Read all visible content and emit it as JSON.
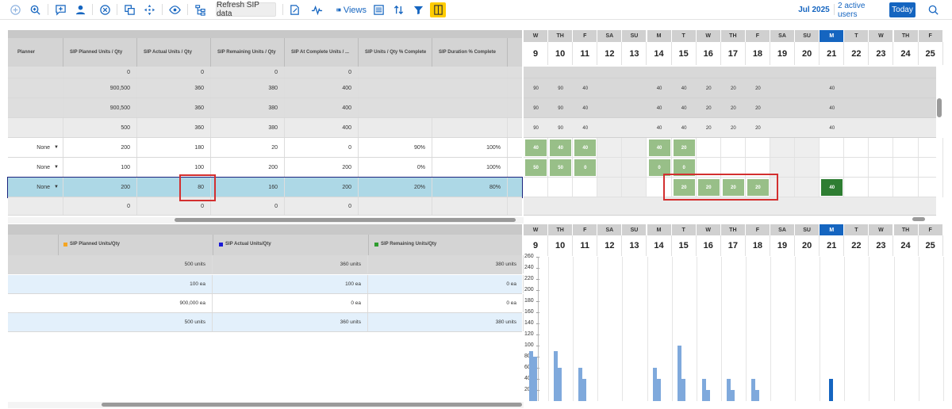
{
  "toolbar": {
    "refresh_label": "Refresh SIP data",
    "views_label": "Views",
    "month_label": "Jul 2025",
    "users_label": "2 active users",
    "today_label": "Today"
  },
  "planning_grid": {
    "columns": [
      "Planner",
      "SIP Planned Units / Qty",
      "SIP Actual Units / Qty",
      "SIP Remaining Units / Qty",
      "SIP At Complete Units / ...",
      "SIP Units / Qty % Complete",
      "SIP Duration % Complete"
    ],
    "rows": [
      {
        "planner": "",
        "planned": "0",
        "actual": "0",
        "remaining": "0",
        "at_complete": "0",
        "units_pct": "",
        "dur_pct": ""
      },
      {
        "planner": "",
        "planned": "900,500",
        "actual": "360",
        "remaining": "380",
        "at_complete": "400",
        "units_pct": "",
        "dur_pct": ""
      },
      {
        "planner": "",
        "planned": "900,500",
        "actual": "360",
        "remaining": "380",
        "at_complete": "400",
        "units_pct": "",
        "dur_pct": ""
      },
      {
        "planner": "",
        "planned": "500",
        "actual": "360",
        "remaining": "380",
        "at_complete": "400",
        "units_pct": "",
        "dur_pct": ""
      },
      {
        "planner": "None",
        "planned": "200",
        "actual": "180",
        "remaining": "20",
        "at_complete": "0",
        "units_pct": "90%",
        "dur_pct": "100%"
      },
      {
        "planner": "None",
        "planned": "100",
        "actual": "100",
        "remaining": "200",
        "at_complete": "200",
        "units_pct": "0%",
        "dur_pct": "100%"
      },
      {
        "planner": "None",
        "planned": "200",
        "actual": "80",
        "remaining": "160",
        "at_complete": "200",
        "units_pct": "20%",
        "dur_pct": "80%"
      },
      {
        "planner": "",
        "planned": "0",
        "actual": "0",
        "remaining": "0",
        "at_complete": "0",
        "units_pct": "",
        "dur_pct": ""
      }
    ]
  },
  "calendar": {
    "days": [
      {
        "dow": "W",
        "num": "9"
      },
      {
        "dow": "TH",
        "num": "10"
      },
      {
        "dow": "F",
        "num": "11"
      },
      {
        "dow": "SA",
        "num": "12"
      },
      {
        "dow": "SU",
        "num": "13"
      },
      {
        "dow": "M",
        "num": "14"
      },
      {
        "dow": "T",
        "num": "15"
      },
      {
        "dow": "W",
        "num": "16"
      },
      {
        "dow": "TH",
        "num": "17"
      },
      {
        "dow": "F",
        "num": "18"
      },
      {
        "dow": "SA",
        "num": "19"
      },
      {
        "dow": "SU",
        "num": "20"
      },
      {
        "dow": "M",
        "num": "21"
      },
      {
        "dow": "T",
        "num": "22"
      },
      {
        "dow": "W",
        "num": "23"
      },
      {
        "dow": "TH",
        "num": "24"
      },
      {
        "dow": "F",
        "num": "25"
      }
    ],
    "row_values": [
      [],
      [
        "90",
        "90",
        "40",
        "",
        "",
        "40",
        "40",
        "20",
        "20",
        "20",
        "",
        "",
        "40",
        "",
        "",
        "",
        ""
      ],
      [
        "90",
        "90",
        "40",
        "",
        "",
        "40",
        "40",
        "20",
        "20",
        "20",
        "",
        "",
        "40",
        "",
        "",
        "",
        ""
      ],
      [
        "90",
        "90",
        "40",
        "",
        "",
        "40",
        "40",
        "20",
        "20",
        "20",
        "",
        "",
        "40",
        "",
        "",
        "",
        ""
      ],
      [
        "40",
        "40",
        "40",
        "",
        "",
        "40",
        "20",
        "",
        "",
        "",
        "",
        "",
        "",
        "",
        "",
        "",
        ""
      ],
      [
        "50",
        "50",
        "0",
        "",
        "",
        "0",
        "0",
        "",
        "",
        "",
        "",
        "",
        "",
        "",
        "",
        "",
        ""
      ],
      [
        "",
        "",
        "",
        "",
        "",
        "",
        "20",
        "20",
        "20",
        "20",
        "",
        "",
        "40",
        "",
        "",
        "",
        ""
      ],
      []
    ]
  },
  "summary_grid": {
    "legend": [
      {
        "label": "SIP Planned Units/Qty",
        "color": "#f5a623"
      },
      {
        "label": "SIP Actual Units/Qty",
        "color": "#1a1ad6"
      },
      {
        "label": "SIP Remaining Units/Qty",
        "color": "#2e9c2e"
      }
    ],
    "rows": [
      {
        "planned": "500 units",
        "actual": "360 units",
        "remaining": "380 units"
      },
      {
        "planned": "100 ea",
        "actual": "100 ea",
        "remaining": "0 ea"
      },
      {
        "planned": "900,000 ea",
        "actual": "0 ea",
        "remaining": "0 ea"
      },
      {
        "planned": "500 units",
        "actual": "360 units",
        "remaining": "380 units"
      }
    ]
  },
  "chart_data": {
    "type": "bar",
    "ylim": [
      0,
      260
    ],
    "yticks": [
      "260",
      "240",
      "220",
      "200",
      "180",
      "160",
      "140",
      "120",
      "100",
      "80",
      "60",
      "40",
      "20"
    ],
    "categories": [
      "9",
      "10",
      "11",
      "12",
      "13",
      "14",
      "15",
      "16",
      "17",
      "18",
      "19",
      "20",
      "21",
      "22",
      "23",
      "24",
      "25"
    ],
    "series": [
      {
        "values": [
          90,
          90,
          60,
          0,
          0,
          60,
          100,
          40,
          40,
          40,
          0,
          0,
          0,
          0,
          0,
          0,
          0
        ]
      },
      {
        "values": [
          80,
          60,
          40,
          0,
          0,
          40,
          40,
          20,
          20,
          20,
          0,
          0,
          40,
          0,
          0,
          0,
          0
        ]
      }
    ]
  }
}
